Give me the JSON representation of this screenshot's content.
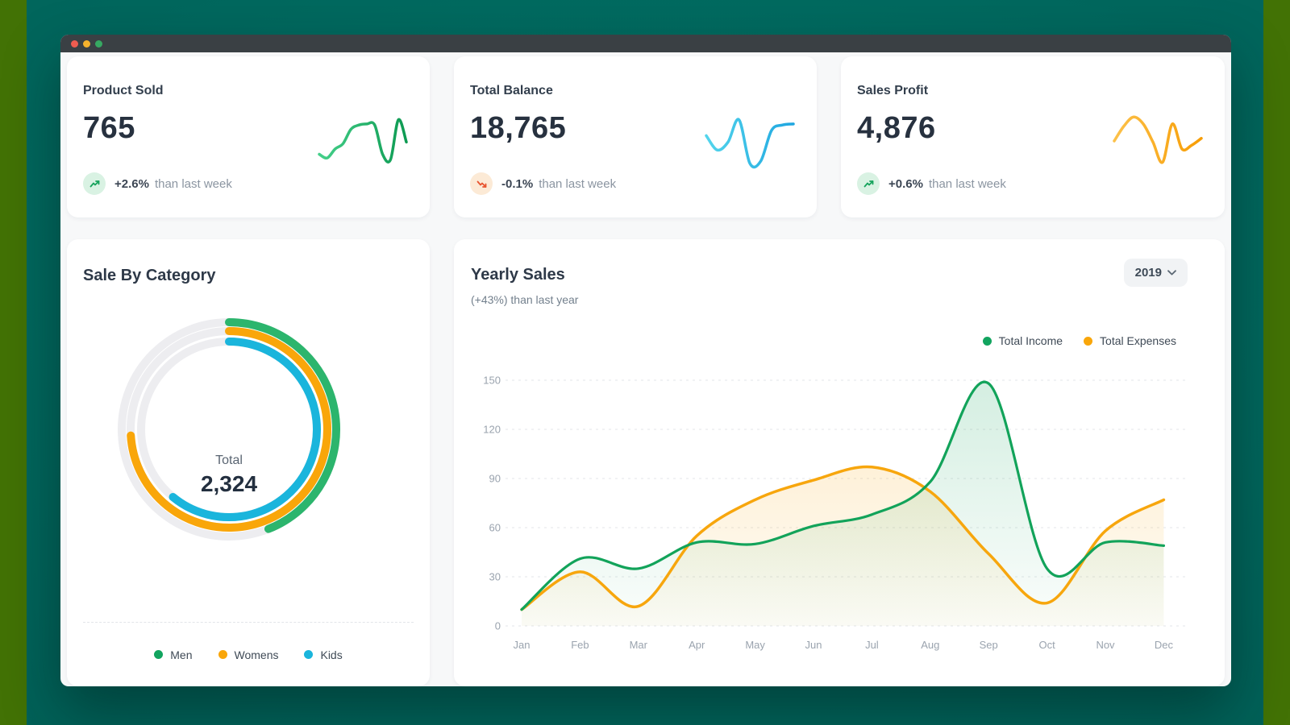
{
  "window": {
    "controls": [
      "close",
      "minimize",
      "zoom"
    ]
  },
  "stats": [
    {
      "label": "Product Sold",
      "value": "765",
      "delta": "+2.6%",
      "note": "than last week",
      "trend": "up"
    },
    {
      "label": "Total Balance",
      "value": "18,765",
      "delta": "-0.1%",
      "note": "than last week",
      "trend": "down"
    },
    {
      "label": "Sales Profit",
      "value": "4,876",
      "delta": "+0.6%",
      "note": "than last week",
      "trend": "up"
    }
  ],
  "category_card": {
    "title": "Sale By Category",
    "center_label": "Total",
    "center_value": "2,324",
    "legend": [
      {
        "label": "Men",
        "color": "#12a45f"
      },
      {
        "label": "Womens",
        "color": "#f9a60a"
      },
      {
        "label": "Kids",
        "color": "#1ab5dc"
      }
    ]
  },
  "yearly_card": {
    "title": "Yearly Sales",
    "subtitle": "(+43%) than last year",
    "year": "2019",
    "legend": [
      {
        "label": "Total Income",
        "color": "#12a45f"
      },
      {
        "label": "Total Expenses",
        "color": "#f9a60a"
      }
    ]
  },
  "chart_data": [
    {
      "type": "line",
      "title": "Yearly Sales",
      "subtitle": "(+43%) than last year",
      "x": [
        "Jan",
        "Feb",
        "Mar",
        "Apr",
        "May",
        "Jun",
        "Jul",
        "Aug",
        "Sep",
        "Oct",
        "Nov",
        "Dec"
      ],
      "series": [
        {
          "name": "Total Income",
          "color": "#12a35a",
          "values": [
            10,
            41,
            35,
            51,
            50,
            61,
            68,
            88,
            148,
            35,
            51,
            49
          ]
        },
        {
          "name": "Total Expenses",
          "color": "#f7a60d",
          "values": [
            10,
            33,
            12,
            55,
            77,
            89,
            97,
            82,
            44,
            14,
            58,
            77
          ]
        }
      ],
      "ylim": [
        0,
        150
      ],
      "yticks": [
        0,
        30,
        60,
        90,
        120,
        150
      ],
      "grid": "horizontal-dashed",
      "legend_position": "top-right",
      "area": true,
      "smooth": true
    },
    {
      "type": "donut",
      "title": "Sale By Category",
      "center_label": "Total",
      "center_value": "2,324",
      "track_color": "#ededf0",
      "rings": [
        {
          "name": "Men",
          "color": "#2cb56d",
          "percent": 44
        },
        {
          "name": "Womens",
          "color": "#f9a60a",
          "percent": 74
        },
        {
          "name": "Kids",
          "color": "#1ab5dc",
          "percent": 61
        }
      ]
    },
    {
      "type": "sparkline",
      "name": "Product Sold",
      "colors": [
        "#45d08a",
        "#0d9a52"
      ],
      "values": [
        25,
        18,
        35,
        45,
        72,
        80,
        82,
        80,
        25,
        15,
        90,
        48
      ]
    },
    {
      "type": "sparkline",
      "name": "Total Balance",
      "colors": [
        "#53d5ec",
        "#1fa6e0"
      ],
      "values": [
        60,
        33,
        48,
        90,
        8,
        12,
        70,
        80,
        82
      ]
    },
    {
      "type": "sparkline",
      "name": "Sales Profit",
      "colors": [
        "#fcc14a",
        "#f79d05"
      ],
      "values": [
        50,
        78,
        95,
        82,
        48,
        10,
        82,
        35,
        42,
        55
      ]
    }
  ]
}
